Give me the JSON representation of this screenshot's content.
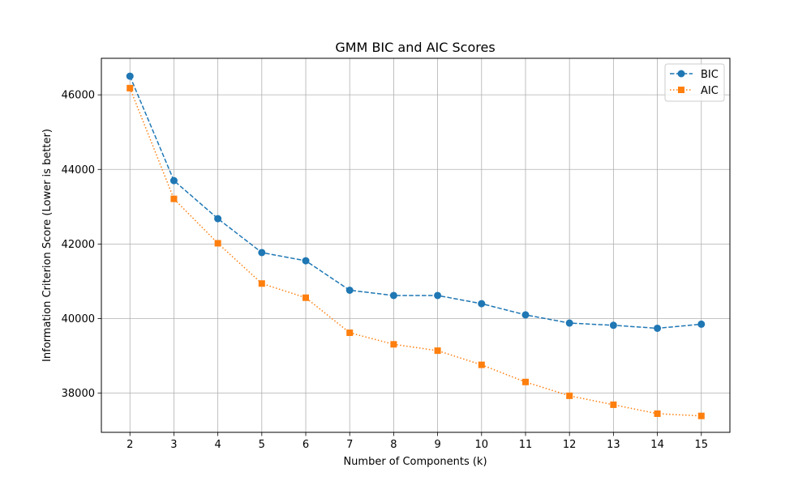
{
  "chart_data": {
    "type": "line",
    "title": "GMM BIC and AIC Scores",
    "xlabel": "Number of Components (k)",
    "ylabel": "Information Criterion Score (Lower is better)",
    "x": [
      2,
      3,
      4,
      5,
      6,
      7,
      8,
      9,
      10,
      11,
      12,
      13,
      14,
      15
    ],
    "xlim": [
      1.35,
      15.65
    ],
    "ylim": [
      36950,
      46980
    ],
    "yticks": [
      38000,
      40000,
      42000,
      44000,
      46000
    ],
    "grid": true,
    "legend_position": "top-right",
    "series": [
      {
        "name": "BIC",
        "color": "#1f77b4",
        "marker": "circle",
        "linestyle": "dashed",
        "values": [
          46500,
          43700,
          42680,
          41770,
          41550,
          40760,
          40620,
          40620,
          40400,
          40100,
          39880,
          39820,
          39740,
          39850
        ]
      },
      {
        "name": "AIC",
        "color": "#ff7f0e",
        "marker": "square",
        "linestyle": "dotted",
        "values": [
          46180,
          43210,
          42020,
          40940,
          40560,
          39620,
          39310,
          39140,
          38760,
          38300,
          37930,
          37690,
          37450,
          37390
        ]
      }
    ]
  }
}
